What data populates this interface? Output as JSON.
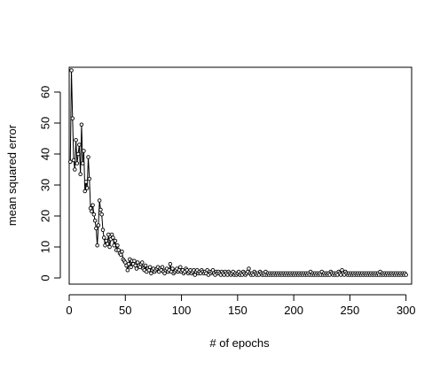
{
  "chart_data": {
    "type": "line",
    "title": "",
    "xlabel": "# of epochs",
    "ylabel": "mean squared error",
    "xlim": [
      0,
      305
    ],
    "ylim": [
      -2,
      68
    ],
    "x_ticks": [
      0,
      50,
      100,
      150,
      200,
      250,
      300
    ],
    "y_ticks": [
      0,
      10,
      20,
      30,
      40,
      50,
      60
    ],
    "grid": false,
    "legend": "none",
    "marker": "open-circle",
    "series": [
      {
        "name": "",
        "color": "#000000",
        "points": [
          [
            1,
            37.5
          ],
          [
            2,
            67
          ],
          [
            3,
            51.5
          ],
          [
            4,
            38
          ],
          [
            5,
            35
          ],
          [
            6,
            44.5
          ],
          [
            7,
            37
          ],
          [
            8,
            40
          ],
          [
            9,
            43
          ],
          [
            10,
            33.5
          ],
          [
            11,
            49.5
          ],
          [
            12,
            37
          ],
          [
            13,
            41
          ],
          [
            14,
            28
          ],
          [
            15,
            31
          ],
          [
            16,
            29
          ],
          [
            17,
            39
          ],
          [
            18,
            32
          ],
          [
            19,
            22.5
          ],
          [
            20,
            21.5
          ],
          [
            21,
            23.5
          ],
          [
            22,
            20.5
          ],
          [
            23,
            18.5
          ],
          [
            24,
            16
          ],
          [
            25,
            10.5
          ],
          [
            26,
            17
          ],
          [
            27,
            25
          ],
          [
            28,
            22
          ],
          [
            29,
            20.5
          ],
          [
            30,
            15.5
          ],
          [
            31,
            13
          ],
          [
            32,
            10.5
          ],
          [
            33,
            12
          ],
          [
            34,
            11
          ],
          [
            35,
            14
          ],
          [
            36,
            10
          ],
          [
            37,
            12.5
          ],
          [
            38,
            14
          ],
          [
            39,
            13
          ],
          [
            40,
            10.5
          ],
          [
            41,
            12
          ],
          [
            42,
            9
          ],
          [
            43,
            10.5
          ],
          [
            44,
            9
          ],
          [
            45,
            8
          ],
          [
            46,
            7.5
          ],
          [
            47,
            8.5
          ],
          [
            48,
            6
          ],
          [
            49,
            5.5
          ],
          [
            50,
            5
          ],
          [
            51,
            4
          ],
          [
            52,
            2.5
          ],
          [
            53,
            4.5
          ],
          [
            54,
            6
          ],
          [
            55,
            3.5
          ],
          [
            56,
            5.5
          ],
          [
            57,
            4.5
          ],
          [
            58,
            5.5
          ],
          [
            59,
            4
          ],
          [
            60,
            3
          ],
          [
            61,
            5
          ],
          [
            62,
            4
          ],
          [
            63,
            3.5
          ],
          [
            64,
            4.5
          ],
          [
            65,
            5
          ],
          [
            66,
            3
          ],
          [
            67,
            2.5
          ],
          [
            68,
            4
          ],
          [
            69,
            2
          ],
          [
            70,
            3
          ],
          [
            71,
            2.5
          ],
          [
            72,
            3.5
          ],
          [
            73,
            1.5
          ],
          [
            74,
            2.5
          ],
          [
            75,
            3
          ],
          [
            76,
            2
          ],
          [
            77,
            2.5
          ],
          [
            78,
            3
          ],
          [
            79,
            3.5
          ],
          [
            80,
            2
          ],
          [
            81,
            3
          ],
          [
            82,
            2.5
          ],
          [
            83,
            3.5
          ],
          [
            84,
            2
          ],
          [
            85,
            1.5
          ],
          [
            86,
            2.5
          ],
          [
            87,
            3
          ],
          [
            88,
            2
          ],
          [
            89,
            2.5
          ],
          [
            90,
            4.5
          ],
          [
            91,
            2
          ],
          [
            92,
            3
          ],
          [
            93,
            1.5
          ],
          [
            94,
            2
          ],
          [
            95,
            2.5
          ],
          [
            96,
            3
          ],
          [
            97,
            2
          ],
          [
            98,
            2.5
          ],
          [
            99,
            3.5
          ],
          [
            100,
            2
          ],
          [
            101,
            2.5
          ],
          [
            102,
            1.5
          ],
          [
            103,
            2
          ],
          [
            104,
            3
          ],
          [
            105,
            2.5
          ],
          [
            106,
            1.5
          ],
          [
            107,
            2
          ],
          [
            108,
            2.5
          ],
          [
            109,
            1.5
          ],
          [
            110,
            2
          ],
          [
            111,
            2.5
          ],
          [
            112,
            1
          ],
          [
            113,
            2
          ],
          [
            114,
            2.5
          ],
          [
            115,
            1.5
          ],
          [
            116,
            2
          ],
          [
            117,
            1.5
          ],
          [
            118,
            2.5
          ],
          [
            119,
            2
          ],
          [
            120,
            1.5
          ],
          [
            121,
            2
          ],
          [
            122,
            1.5
          ],
          [
            123,
            2.5
          ],
          [
            124,
            1
          ],
          [
            125,
            2
          ],
          [
            126,
            1.5
          ],
          [
            127,
            2
          ],
          [
            128,
            2.5
          ],
          [
            129,
            1.5
          ],
          [
            130,
            1
          ],
          [
            131,
            2
          ],
          [
            132,
            1.5
          ],
          [
            133,
            2
          ],
          [
            134,
            1.5
          ],
          [
            135,
            1
          ],
          [
            136,
            2
          ],
          [
            137,
            1.5
          ],
          [
            138,
            1
          ],
          [
            139,
            2
          ],
          [
            140,
            1.5
          ],
          [
            141,
            1
          ],
          [
            142,
            2
          ],
          [
            143,
            1.5
          ],
          [
            144,
            1
          ],
          [
            145,
            1.5
          ],
          [
            146,
            2
          ],
          [
            147,
            1
          ],
          [
            148,
            1.5
          ],
          [
            149,
            1
          ],
          [
            150,
            1.5
          ],
          [
            151,
            2
          ],
          [
            152,
            1
          ],
          [
            153,
            1.5
          ],
          [
            154,
            1
          ],
          [
            155,
            2
          ],
          [
            156,
            1.5
          ],
          [
            157,
            1
          ],
          [
            158,
            1.5
          ],
          [
            159,
            2
          ],
          [
            160,
            3
          ],
          [
            161,
            1.5
          ],
          [
            162,
            1
          ],
          [
            163,
            1.5
          ],
          [
            164,
            1
          ],
          [
            165,
            2
          ],
          [
            166,
            1.5
          ],
          [
            167,
            1
          ],
          [
            168,
            1.5
          ],
          [
            169,
            1
          ],
          [
            170,
            2
          ],
          [
            171,
            1.5
          ],
          [
            172,
            1
          ],
          [
            173,
            1.5
          ],
          [
            174,
            1
          ],
          [
            175,
            2
          ],
          [
            176,
            1
          ],
          [
            177,
            1.5
          ],
          [
            178,
            1
          ],
          [
            179,
            1.5
          ],
          [
            180,
            1
          ],
          [
            181,
            1.5
          ],
          [
            182,
            1
          ],
          [
            183,
            1.5
          ],
          [
            184,
            1
          ],
          [
            185,
            1.5
          ],
          [
            186,
            1
          ],
          [
            187,
            1.5
          ],
          [
            188,
            1
          ],
          [
            189,
            1.5
          ],
          [
            190,
            1
          ],
          [
            191,
            1.5
          ],
          [
            192,
            1
          ],
          [
            193,
            1.5
          ],
          [
            194,
            1
          ],
          [
            195,
            1.5
          ],
          [
            196,
            1
          ],
          [
            197,
            1.5
          ],
          [
            198,
            1
          ],
          [
            199,
            1.5
          ],
          [
            200,
            1
          ],
          [
            201,
            1.5
          ],
          [
            202,
            1
          ],
          [
            203,
            1.5
          ],
          [
            204,
            1
          ],
          [
            205,
            1.5
          ],
          [
            206,
            1
          ],
          [
            207,
            1.5
          ],
          [
            208,
            1
          ],
          [
            209,
            1.5
          ],
          [
            210,
            1
          ],
          [
            211,
            1.5
          ],
          [
            212,
            1
          ],
          [
            213,
            1.5
          ],
          [
            214,
            1
          ],
          [
            215,
            2
          ],
          [
            216,
            1
          ],
          [
            217,
            1.5
          ],
          [
            218,
            1
          ],
          [
            219,
            1.5
          ],
          [
            220,
            1
          ],
          [
            221,
            1.5
          ],
          [
            222,
            1
          ],
          [
            223,
            1.5
          ],
          [
            224,
            1
          ],
          [
            225,
            2
          ],
          [
            226,
            1
          ],
          [
            227,
            1.5
          ],
          [
            228,
            1
          ],
          [
            229,
            1.5
          ],
          [
            230,
            1
          ],
          [
            231,
            1.5
          ],
          [
            232,
            1
          ],
          [
            233,
            2
          ],
          [
            234,
            1.5
          ],
          [
            235,
            1
          ],
          [
            236,
            1.5
          ],
          [
            237,
            1
          ],
          [
            238,
            1.5
          ],
          [
            239,
            1
          ],
          [
            240,
            2
          ],
          [
            241,
            1.5
          ],
          [
            242,
            1
          ],
          [
            243,
            2.5
          ],
          [
            244,
            1.5
          ],
          [
            245,
            1
          ],
          [
            246,
            2
          ],
          [
            247,
            1.5
          ],
          [
            248,
            1
          ],
          [
            249,
            1.5
          ],
          [
            250,
            1
          ],
          [
            251,
            1.5
          ],
          [
            252,
            1
          ],
          [
            253,
            1.5
          ],
          [
            254,
            1
          ],
          [
            255,
            1.5
          ],
          [
            256,
            1
          ],
          [
            257,
            1.5
          ],
          [
            258,
            1
          ],
          [
            259,
            1.5
          ],
          [
            260,
            1
          ],
          [
            261,
            1.5
          ],
          [
            262,
            1
          ],
          [
            263,
            1.5
          ],
          [
            264,
            1
          ],
          [
            265,
            1.5
          ],
          [
            266,
            1
          ],
          [
            267,
            1.5
          ],
          [
            268,
            1
          ],
          [
            269,
            1.5
          ],
          [
            270,
            1
          ],
          [
            271,
            1.5
          ],
          [
            272,
            1
          ],
          [
            273,
            1.5
          ],
          [
            274,
            1
          ],
          [
            275,
            1.5
          ],
          [
            276,
            1
          ],
          [
            277,
            2
          ],
          [
            278,
            1
          ],
          [
            279,
            1.5
          ],
          [
            280,
            1
          ],
          [
            281,
            1.5
          ],
          [
            282,
            1
          ],
          [
            283,
            1.5
          ],
          [
            284,
            1
          ],
          [
            285,
            1.5
          ],
          [
            286,
            1
          ],
          [
            287,
            1.5
          ],
          [
            288,
            1
          ],
          [
            289,
            1.5
          ],
          [
            290,
            1
          ],
          [
            291,
            1.5
          ],
          [
            292,
            1
          ],
          [
            293,
            1.5
          ],
          [
            294,
            1
          ],
          [
            295,
            1.5
          ],
          [
            296,
            1
          ],
          [
            297,
            1.5
          ],
          [
            298,
            1
          ],
          [
            299,
            1.5
          ],
          [
            300,
            1
          ]
        ]
      }
    ]
  }
}
